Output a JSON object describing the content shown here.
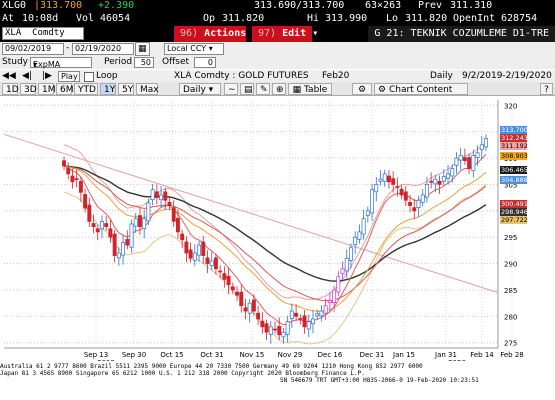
{
  "quote": {
    "ticker": "XLG0",
    "last": "313.700",
    "change": "+2.390",
    "bid_ask": "313.690/313.700",
    "size": "63×263",
    "prev_label": "Prev",
    "prev": "311.310",
    "time_label": "At",
    "time": "10:08d",
    "vol_label": "Vol",
    "vol": "46054",
    "op_label": "Op",
    "op": "311.820",
    "hi_label": "Hi",
    "hi": "313.990",
    "lo_label": "Lo",
    "lo": "311.820",
    "oi_label": "OpenInt",
    "oi": "628754"
  },
  "toolbar": {
    "security": "XLA",
    "security_type": "Comdty",
    "actions": "Actions",
    "actions_num": "96)",
    "edit": "Edit",
    "edit_num": "97)",
    "screen_title": "G 21: TEKNIK COZUMLEME D1-TRE"
  },
  "range": {
    "start": "09/02/2019",
    "end": "02/19/2020",
    "currency": "Local CCY"
  },
  "study": {
    "label": "Study",
    "value": "ExpMA",
    "period_label": "Period",
    "period": "50",
    "offset_label": "Offset",
    "offset": "0"
  },
  "controls": {
    "play": "Play",
    "loop": "Loop",
    "instrument": "XLA Comdty : GOLD FUTURES",
    "contract": "Feb20",
    "frequency": "Daily",
    "period_range": "9/2/2019-2/19/2020"
  },
  "periods": [
    "1D",
    "3D",
    "1M",
    "6M",
    "YTD",
    "1Y",
    "5Y",
    "Max"
  ],
  "selected_period": "1Y",
  "period_freq": "Daily",
  "table_label": "Table",
  "chart_content_label": "Chart Content",
  "chart_data": {
    "type": "candlestick",
    "x_ticks": [
      "Sep 13",
      "Sep 30",
      "Oct 15",
      "Oct 31",
      "Nov 15",
      "Nov 29",
      "Dec 16",
      "Dec 31",
      "Jan 15",
      "Jan 31",
      "Feb 14",
      "Feb 28"
    ],
    "year_labels": [
      "2019",
      "2020"
    ],
    "y_ticks": [
      275,
      280,
      285,
      290,
      295,
      300,
      305,
      310,
      315,
      320
    ],
    "ylim": [
      274,
      321
    ],
    "close": [
      308.5,
      307,
      305.5,
      306,
      303.5,
      300.5,
      298,
      297,
      296,
      298,
      297,
      295,
      291.5,
      292,
      294,
      293.5,
      297.5,
      298.5,
      297,
      298.5,
      301.5,
      304,
      302.5,
      303,
      302,
      301,
      298,
      296,
      294.5,
      292,
      291,
      292,
      293.5,
      291.5,
      290,
      290.5,
      289,
      288.5,
      287,
      286,
      285,
      284,
      282,
      281,
      282.5,
      281,
      279.5,
      278,
      277,
      278,
      277.5,
      276.5,
      277,
      279,
      281,
      280,
      279.5,
      278,
      279,
      279.5,
      280.5,
      281,
      282,
      283,
      285,
      287.5,
      289,
      291,
      293,
      295,
      296,
      298.5,
      300,
      304,
      305,
      306,
      307,
      305.5,
      305,
      304.5,
      303,
      302,
      301,
      300,
      302,
      303,
      305,
      305.5,
      306,
      305,
      306.5,
      307,
      308,
      310,
      310.5,
      309.5,
      308,
      310.5,
      311,
      312.5,
      313.7
    ],
    "price_labels": [
      {
        "value": "313.700",
        "color": "#4a8fe0",
        "text_color": "#ffffff"
      },
      {
        "value": "312.243",
        "color": "#c62f2f",
        "text_color": "#ffffff"
      },
      {
        "value": "311.192",
        "color": "#f4a0a0",
        "text_color": "#000000"
      },
      {
        "value": "308.903",
        "color": "#f5a623",
        "text_color": "#000000"
      },
      {
        "value": "306.465",
        "color": "#1a1a1a",
        "text_color": "#ffffff"
      },
      {
        "value": "304.888",
        "color": "#4a8fe0",
        "text_color": "#ffffff"
      },
      {
        "value": "300.491",
        "color": "#c62f2f",
        "text_color": "#ffffff"
      },
      {
        "value": "298.946",
        "color": "#333333",
        "text_color": "#ffffff"
      },
      {
        "value": "297.722",
        "color": "#e9c36a",
        "text_color": "#000000"
      }
    ]
  },
  "footer": {
    "line1": "Australia 61 2 9777 8600 Brazil 5511 2395 9000 Europe 44 20 7330 7500 Germany 49 69 9204 1210 Hong Kong 852 2977 6000",
    "line2": "Japan 81 3 4565 8900       Singapore 65 6212 1000      U.S. 1 212 318 2000          Copyright 2020 Bloomberg Finance L.P.",
    "line3": "SN 546679 TRT  GMT+3:00 H835-2066-0 19-Feb-2020 10:23:51"
  },
  "colors": {
    "up": "#2a6fd6",
    "down": "#d2232a",
    "highlight": "#cc33cc",
    "ma_black": "#333333",
    "ma_orange": "#e8a23a",
    "ma_red": "#d45a5a",
    "band": "#e8a0a0"
  }
}
